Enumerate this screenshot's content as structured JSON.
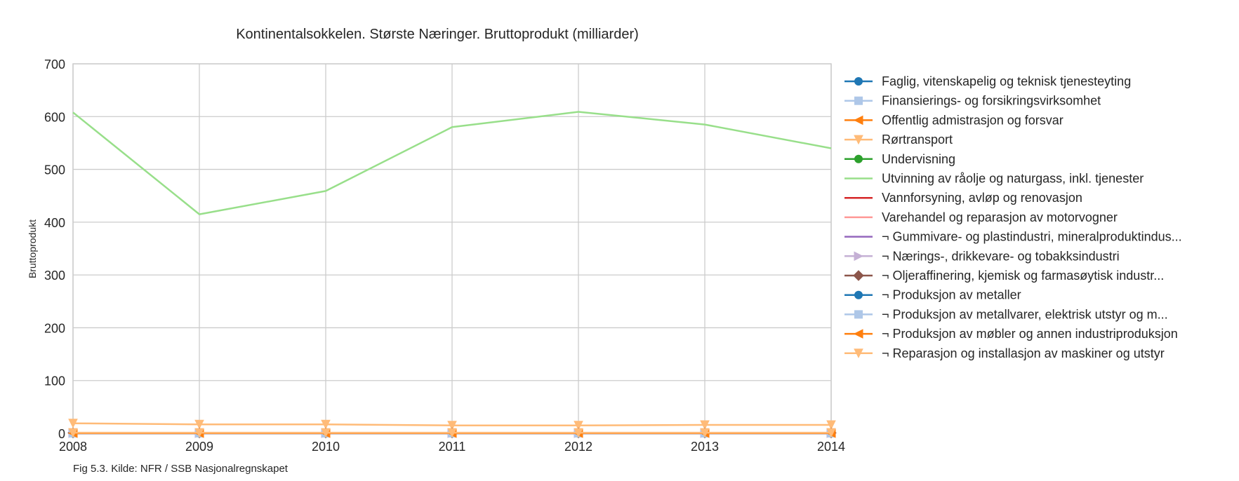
{
  "chart_data": {
    "type": "line",
    "title": "Kontinentalsokkelen. Største Næringer. Bruttoprodukt (milliarder)",
    "xlabel": "",
    "ylabel": "Bruttoprodukt",
    "x": [
      "2008",
      "2009",
      "2010",
      "2011",
      "2012",
      "2013",
      "2014"
    ],
    "xlim": [
      2008,
      2014
    ],
    "ylim": [
      0,
      700
    ],
    "yticks": [
      0,
      100,
      200,
      300,
      400,
      500,
      600,
      700
    ],
    "grid": true,
    "legend_position": "right",
    "caption": "Fig 5.3. Kilde: NFR / SSB Nasjonalregnskapet",
    "series": [
      {
        "name": "Faglig, vitenskapelig og teknisk tjenesteyting",
        "color": "#1f77b4",
        "marker": "circle",
        "values": [
          0.6,
          0.6,
          0.6,
          0.6,
          0.6,
          0.6,
          0.6
        ]
      },
      {
        "name": "Finansierings- og forsikringsvirksomhet",
        "color": "#aec7e8",
        "marker": "square",
        "values": [
          0.3,
          0.3,
          0.3,
          0.3,
          0.3,
          0.3,
          0.3
        ]
      },
      {
        "name": "Offentlig admistrasjon og forsvar",
        "color": "#ff7f0e",
        "marker": "triangle-left",
        "values": [
          0.5,
          0.5,
          0.5,
          0.5,
          0.5,
          0.5,
          0.5
        ]
      },
      {
        "name": "Rørtransport",
        "color": "#ffbb78",
        "marker": "triangle-down",
        "values": [
          19,
          17,
          17,
          15,
          15,
          16,
          16
        ]
      },
      {
        "name": "Undervisning",
        "color": "#2ca02c",
        "marker": "circle",
        "values": [
          0.1,
          0.1,
          0.1,
          0.1,
          0.1,
          0.1,
          0.1
        ]
      },
      {
        "name": "Utvinning av råolje og naturgass, inkl. tjenester",
        "color": "#98df8a",
        "marker": "none",
        "values": [
          608,
          415,
          459,
          580,
          609,
          585,
          540
        ]
      },
      {
        "name": "Vannforsyning, avløp og renovasjon",
        "color": "#d62728",
        "marker": "none",
        "values": [
          0.1,
          0.1,
          0.1,
          0.1,
          0.1,
          0.1,
          0.1
        ]
      },
      {
        "name": "Varehandel og reparasjon av motorvogner",
        "color": "#ff9896",
        "marker": "none",
        "values": [
          0.4,
          0.4,
          0.4,
          0.4,
          0.4,
          0.4,
          0.4
        ]
      },
      {
        "name": "¬ Gummivare- og plastindustri, mineralproduktindus...",
        "color": "#9467bd",
        "marker": "none",
        "values": [
          0.1,
          0.1,
          0.1,
          0.1,
          0.1,
          0.1,
          0.1
        ]
      },
      {
        "name": "¬ Nærings-, drikkevare- og tobakksindustri",
        "color": "#c5b0d5",
        "marker": "triangle-right",
        "values": [
          0.1,
          0.1,
          0.1,
          0.1,
          0.1,
          0.1,
          0.1
        ]
      },
      {
        "name": "¬ Oljeraffinering, kjemisk og farmasøytisk industr...",
        "color": "#8c564b",
        "marker": "diamond",
        "values": [
          0.8,
          0.8,
          0.8,
          0.8,
          0.8,
          0.8,
          0.8
        ]
      },
      {
        "name": "¬ Produksjon av metaller",
        "color": "#1f77b4",
        "marker": "circle",
        "values": [
          0.1,
          0.1,
          0.1,
          0.1,
          0.1,
          0.1,
          0.1
        ]
      },
      {
        "name": "¬ Produksjon av metallvarer, elektrisk utstyr og m...",
        "color": "#aec7e8",
        "marker": "square",
        "values": [
          0.4,
          0.4,
          0.4,
          0.4,
          0.4,
          0.4,
          0.4
        ]
      },
      {
        "name": "¬ Produksjon av møbler og annen industriproduksjon",
        "color": "#ff7f0e",
        "marker": "triangle-left",
        "values": [
          0.2,
          0.2,
          0.2,
          0.2,
          0.2,
          0.2,
          0.2
        ]
      },
      {
        "name": "¬ Reparasjon og installasjon av maskiner og utstyr",
        "color": "#ffbb78",
        "marker": "triangle-down",
        "values": [
          1.2,
          1.2,
          1.2,
          1.2,
          1.2,
          1.2,
          1.2
        ]
      }
    ]
  }
}
